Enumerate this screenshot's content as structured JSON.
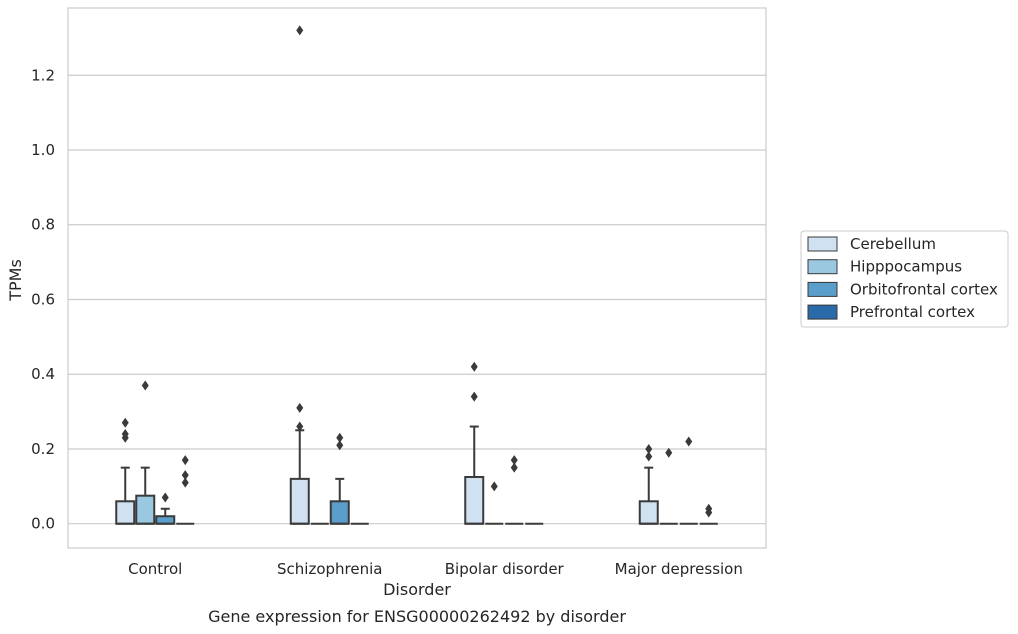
{
  "chart_data": {
    "type": "boxplot",
    "title": "Gene expression for ENSG00000262492 by disorder",
    "xlabel": "Disorder",
    "ylabel": "TPMs",
    "ylim": [
      -0.065,
      1.38
    ],
    "yticks": [
      "0.0",
      "0.2",
      "0.4",
      "0.6",
      "0.8",
      "1.0",
      "1.2"
    ],
    "grid": "horizontal",
    "legend_position": "right",
    "categories": [
      "Control",
      "Schizophrenia",
      "Bipolar disorder",
      "Major depression"
    ],
    "series": [
      {
        "name": "Cerebellum",
        "color": "#d0e1f2",
        "boxes": [
          {
            "q1": 0,
            "median": 0,
            "q3": 0.06,
            "whisker_low": 0,
            "whisker_high": 0.15,
            "outliers": [
              0.23,
              0.24,
              0.27
            ]
          },
          {
            "q1": 0,
            "median": 0,
            "q3": 0.12,
            "whisker_low": 0,
            "whisker_high": 0.25,
            "outliers": [
              0.26,
              0.31,
              1.32
            ]
          },
          {
            "q1": 0,
            "median": 0,
            "q3": 0.125,
            "whisker_low": 0,
            "whisker_high": 0.26,
            "outliers": [
              0.34,
              0.42
            ]
          },
          {
            "q1": 0,
            "median": 0,
            "q3": 0.06,
            "whisker_low": 0,
            "whisker_high": 0.15,
            "outliers": [
              0.18,
              0.2
            ]
          }
        ]
      },
      {
        "name": "Hipppocampus",
        "color": "#9ac8e0",
        "boxes": [
          {
            "q1": 0,
            "median": 0,
            "q3": 0.075,
            "whisker_low": 0,
            "whisker_high": 0.15,
            "outliers": [
              0.37
            ]
          },
          {
            "q1": 0,
            "median": 0,
            "q3": 0,
            "whisker_low": 0,
            "whisker_high": 0,
            "outliers": []
          },
          {
            "q1": 0,
            "median": 0,
            "q3": 0,
            "whisker_low": 0,
            "whisker_high": 0,
            "outliers": [
              0.1
            ]
          },
          {
            "q1": 0,
            "median": 0,
            "q3": 0,
            "whisker_low": 0,
            "whisker_high": 0,
            "outliers": [
              0.19
            ]
          }
        ]
      },
      {
        "name": "Orbitofrontal cortex",
        "color": "#5a9fcb",
        "boxes": [
          {
            "q1": 0,
            "median": 0,
            "q3": 0.02,
            "whisker_low": 0,
            "whisker_high": 0.04,
            "outliers": [
              0.07
            ]
          },
          {
            "q1": 0,
            "median": 0,
            "q3": 0.06,
            "whisker_low": 0,
            "whisker_high": 0.12,
            "outliers": [
              0.21,
              0.23
            ]
          },
          {
            "q1": 0,
            "median": 0,
            "q3": 0,
            "whisker_low": 0,
            "whisker_high": 0,
            "outliers": [
              0.15,
              0.17
            ]
          },
          {
            "q1": 0,
            "median": 0,
            "q3": 0,
            "whisker_low": 0,
            "whisker_high": 0,
            "outliers": [
              0.22
            ]
          }
        ]
      },
      {
        "name": "Prefrontal cortex",
        "color": "#2a6aa8",
        "boxes": [
          {
            "q1": 0,
            "median": 0,
            "q3": 0,
            "whisker_low": 0,
            "whisker_high": 0,
            "outliers": [
              0.11,
              0.13,
              0.17
            ]
          },
          {
            "q1": 0,
            "median": 0,
            "q3": 0,
            "whisker_low": 0,
            "whisker_high": 0,
            "outliers": []
          },
          {
            "q1": 0,
            "median": 0,
            "q3": 0,
            "whisker_low": 0,
            "whisker_high": 0,
            "outliers": []
          },
          {
            "q1": 0,
            "median": 0,
            "q3": 0,
            "whisker_low": 0,
            "whisker_high": 0,
            "outliers": [
              0.03,
              0.04
            ]
          }
        ]
      }
    ]
  }
}
